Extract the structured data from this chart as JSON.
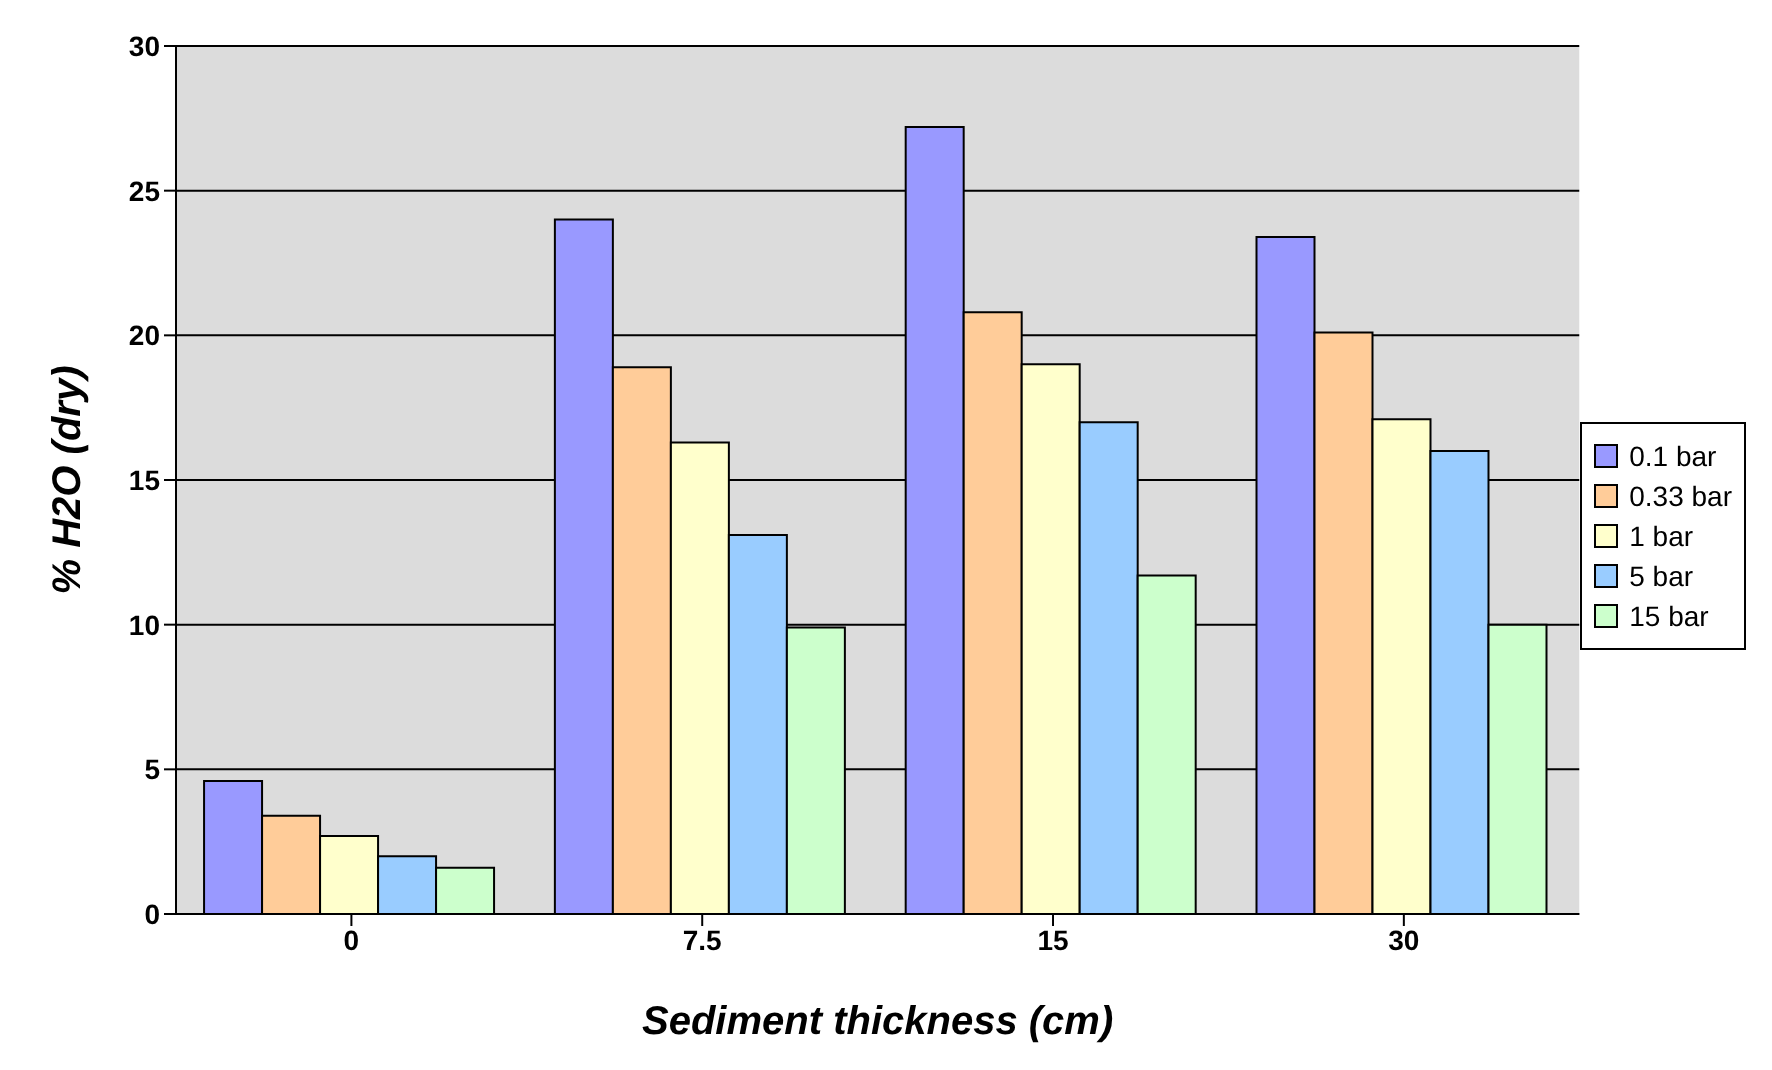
{
  "chart_data": {
    "type": "bar",
    "xlabel": "Sediment thickness (cm)",
    "ylabel": "% H2O (dry)",
    "categories": [
      "0",
      "7.5",
      "15",
      "30"
    ],
    "series": [
      {
        "name": "0.1 bar",
        "color": "#9999ff",
        "values": [
          4.6,
          24.0,
          27.2,
          23.4
        ]
      },
      {
        "name": "0.33 bar",
        "color": "#ffcc99",
        "values": [
          3.4,
          18.9,
          20.8,
          20.1
        ]
      },
      {
        "name": "1 bar",
        "color": "#ffffcc",
        "values": [
          2.7,
          16.3,
          19.0,
          17.1
        ]
      },
      {
        "name": "5 bar",
        "color": "#99ccff",
        "values": [
          2.0,
          13.1,
          17.0,
          16.0
        ]
      },
      {
        "name": "15 bar",
        "color": "#ccffcc",
        "values": [
          1.6,
          9.9,
          11.7,
          10.0
        ]
      }
    ],
    "ylim": [
      0,
      30
    ],
    "yticks": [
      0,
      5,
      10,
      15,
      20,
      25,
      30
    ],
    "grid": "y",
    "legend": "right"
  }
}
